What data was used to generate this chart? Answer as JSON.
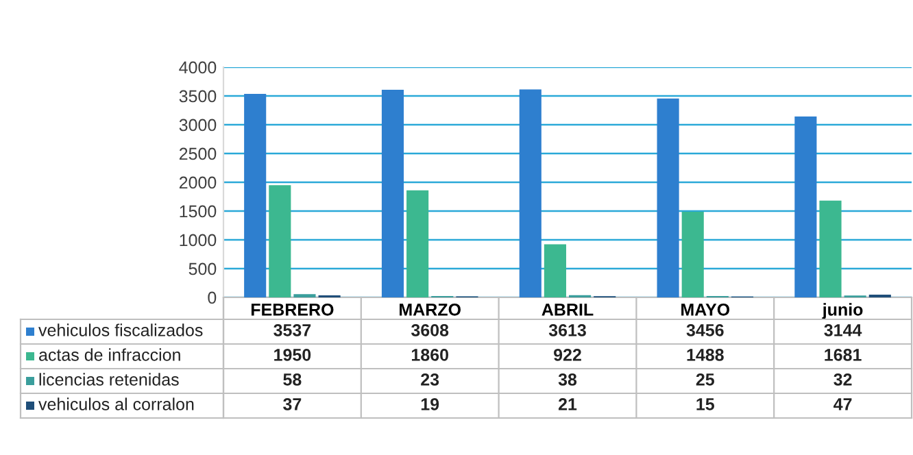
{
  "chart_data": {
    "type": "bar",
    "categories": [
      "FEBRERO",
      "MARZO",
      "ABRIL",
      "MAYO",
      "junio"
    ],
    "series": [
      {
        "name": "vehiculos fiscalizados",
        "color": "#2e7fcf",
        "values": [
          3537,
          3608,
          3613,
          3456,
          3144
        ]
      },
      {
        "name": "actas de infraccion",
        "color": "#3cb890",
        "values": [
          1950,
          1860,
          922,
          1488,
          1681
        ]
      },
      {
        "name": "licencias retenidas",
        "color": "#3a9e9c",
        "values": [
          58,
          23,
          38,
          25,
          32
        ]
      },
      {
        "name": "vehiculos al corralon",
        "color": "#1f4e79",
        "values": [
          37,
          19,
          21,
          15,
          47
        ]
      }
    ],
    "ylim": [
      0,
      4000
    ],
    "yticks": [
      0,
      500,
      1000,
      1500,
      2000,
      2500,
      3000,
      3500,
      4000
    ],
    "grid": "y",
    "legend": "bottom",
    "data_labels": true
  }
}
